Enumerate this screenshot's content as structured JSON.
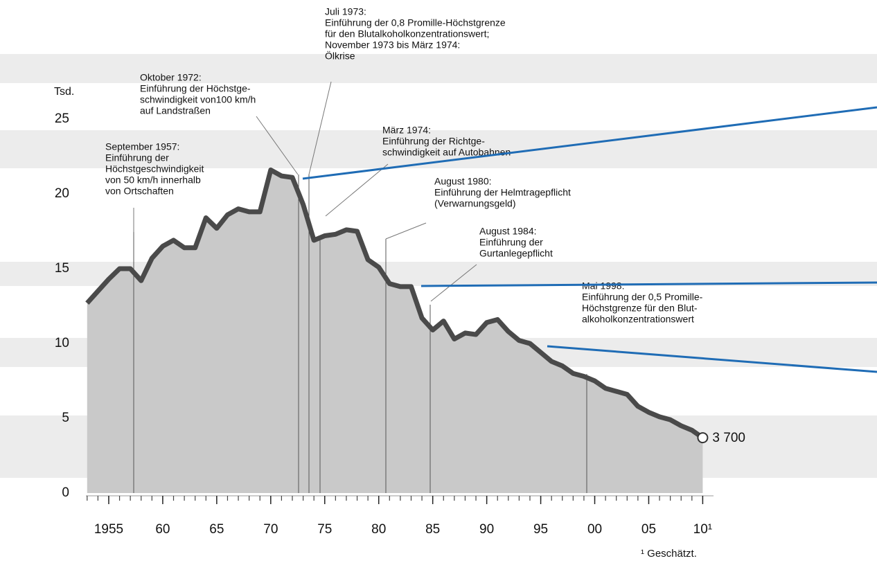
{
  "chart_data": {
    "type": "area",
    "unit_label": "Tsd.",
    "footnote": "¹ Geschätzt.",
    "x": [
      1953,
      1954,
      1955,
      1956,
      1957,
      1958,
      1959,
      1960,
      1961,
      1962,
      1963,
      1964,
      1965,
      1966,
      1967,
      1968,
      1969,
      1970,
      1971,
      1972,
      1973,
      1974,
      1975,
      1976,
      1977,
      1978,
      1979,
      1980,
      1981,
      1982,
      1983,
      1984,
      1985,
      1986,
      1987,
      1988,
      1989,
      1990,
      1991,
      1992,
      1993,
      1994,
      1995,
      1996,
      1997,
      1998,
      1999,
      2000,
      2001,
      2002,
      2003,
      2004,
      2005,
      2006,
      2007,
      2008,
      2009,
      2010
    ],
    "values": [
      12.7,
      13.5,
      14.3,
      15.0,
      15.0,
      14.2,
      15.7,
      16.5,
      16.9,
      16.4,
      16.4,
      18.4,
      17.7,
      18.6,
      19.0,
      18.8,
      18.8,
      21.6,
      21.2,
      21.1,
      19.3,
      16.9,
      17.2,
      17.3,
      17.6,
      17.5,
      15.6,
      15.1,
      14.0,
      13.8,
      13.8,
      11.7,
      10.9,
      11.5,
      10.3,
      10.7,
      10.6,
      11.4,
      11.6,
      10.8,
      10.2,
      10.0,
      9.4,
      8.8,
      8.5,
      8.0,
      7.8,
      7.5,
      7.0,
      6.8,
      6.6,
      5.8,
      5.4,
      5.1,
      4.9,
      4.5,
      4.2,
      3.7
    ],
    "value_labels": [
      null,
      null,
      null,
      null,
      null,
      null,
      null,
      null,
      null,
      null,
      null,
      null,
      null,
      null,
      null,
      null,
      null,
      null,
      null,
      null,
      null,
      null,
      null,
      null,
      null,
      null,
      null,
      null,
      null,
      null,
      null,
      null,
      null,
      null,
      null,
      null,
      null,
      null,
      null,
      null,
      null,
      null,
      null,
      null,
      null,
      null,
      null,
      null,
      null,
      null,
      null,
      null,
      null,
      null,
      null,
      null,
      null,
      "3 700"
    ],
    "color": "#4a4a4a",
    "fill": "#c9c9c9",
    "xlim": [
      1952.5,
      2011
    ],
    "xticks": [
      {
        "value": 1955,
        "label": "1955"
      },
      {
        "value": 1960,
        "label": "60"
      },
      {
        "value": 1965,
        "label": "65"
      },
      {
        "value": 1970,
        "label": "70"
      },
      {
        "value": 1975,
        "label": "75"
      },
      {
        "value": 1980,
        "label": "80"
      },
      {
        "value": 1985,
        "label": "85"
      },
      {
        "value": 1990,
        "label": "90"
      },
      {
        "value": 1995,
        "label": "95"
      },
      {
        "value": 2000,
        "label": "00"
      },
      {
        "value": 2005,
        "label": "05"
      },
      {
        "value": 2010,
        "label": "10¹"
      }
    ],
    "ylim": [
      0,
      25
    ],
    "yticks": [
      0,
      5,
      10,
      15,
      20,
      25
    ],
    "annotations": [
      [
        "September 1957:",
        "Einführung der",
        "Höchstgeschwindigkeit",
        "von 50 km/h innerhalb",
        "von Ortschaften"
      ],
      [
        "Oktober 1972:",
        "Einführung der Höchstge-",
        "schwindigkeit von100 km/h",
        "auf Landstraßen"
      ],
      [
        "Juli 1973:",
        "Einführung der 0,8 Promille-Höchstgrenze",
        "für den Blutalkoholkonzentrationswert;",
        "November 1973 bis März 1974:",
        "Ölkrise"
      ],
      [
        "März 1974:",
        "Einführung der Richtge-",
        "schwindigkeit auf Autobahnen"
      ],
      [
        "August 1980:",
        "Einführung der Helmtragepflicht",
        "(Verwarnungsgeld)"
      ],
      [
        "August 1984:",
        "Einführung der",
        "Gurtanlegepflicht"
      ],
      [
        "Mai 1998:",
        "Einführung der 0,5 Promille-",
        "Höchstgrenze für den Blut-",
        "alkoholkonzentrationswert"
      ]
    ]
  }
}
